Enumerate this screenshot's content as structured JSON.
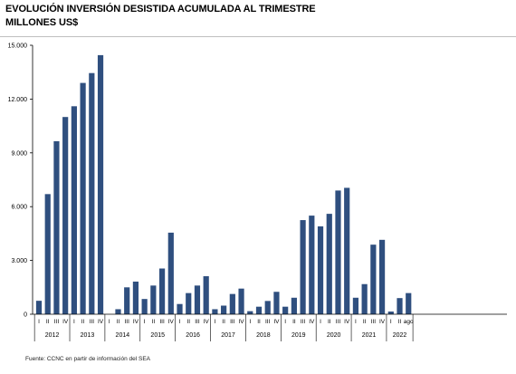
{
  "header": {
    "title_line1": "EVOLUCIÓN INVERSIÓN DESISTIDA ACUMULADA AL TRIMESTRE",
    "title_line2": "MILLONES US$"
  },
  "footer": {
    "source": "Fuente: CCNC en partir de información del SEA"
  },
  "chart_data": {
    "type": "bar",
    "title": "EVOLUCIÓN INVERSIÓN DESISTIDA ACUMULADA AL TRIMESTRE",
    "subtitle": "MILLONES US$",
    "ylim": [
      0,
      15000
    ],
    "yticks": [
      "0",
      "3.000",
      "6.000",
      "9.000",
      "12.000",
      "15.000"
    ],
    "ytick_values": [
      0,
      3000,
      6000,
      9000,
      12000,
      15000
    ],
    "bar_color": "#2f4f7f",
    "categories": [
      "I",
      "II",
      "III",
      "IV",
      "I",
      "II",
      "III",
      "IV",
      "I",
      "II",
      "III",
      "IV",
      "I",
      "II",
      "III",
      "IV",
      "I",
      "II",
      "III",
      "IV",
      "I",
      "II",
      "III",
      "IV",
      "I",
      "II",
      "III",
      "IV",
      "I",
      "II",
      "III",
      "IV",
      "I",
      "II",
      "III",
      "IV",
      "I",
      "II",
      "III",
      "IV",
      "I",
      "II",
      "ago"
    ],
    "values": [
      750,
      6700,
      9650,
      11000,
      11600,
      12900,
      13450,
      14450,
      0,
      280,
      1500,
      1820,
      850,
      1600,
      2550,
      4550,
      570,
      1180,
      1600,
      2120,
      280,
      480,
      1130,
      1430,
      170,
      420,
      740,
      1250,
      420,
      920,
      5250,
      5500,
      4900,
      5600,
      6900,
      7050,
      920,
      1680,
      3880,
      4150,
      150,
      900,
      1180
    ],
    "groups": [
      {
        "label": "2012",
        "count": 4
      },
      {
        "label": "2013",
        "count": 4
      },
      {
        "label": "2014",
        "count": 4
      },
      {
        "label": "2015",
        "count": 4
      },
      {
        "label": "2016",
        "count": 4
      },
      {
        "label": "2017",
        "count": 4
      },
      {
        "label": "2018",
        "count": 4
      },
      {
        "label": "2019",
        "count": 4
      },
      {
        "label": "2020",
        "count": 4
      },
      {
        "label": "2021",
        "count": 4
      },
      {
        "label": "2022",
        "count": 3
      }
    ],
    "grid": false,
    "legend": "none"
  }
}
